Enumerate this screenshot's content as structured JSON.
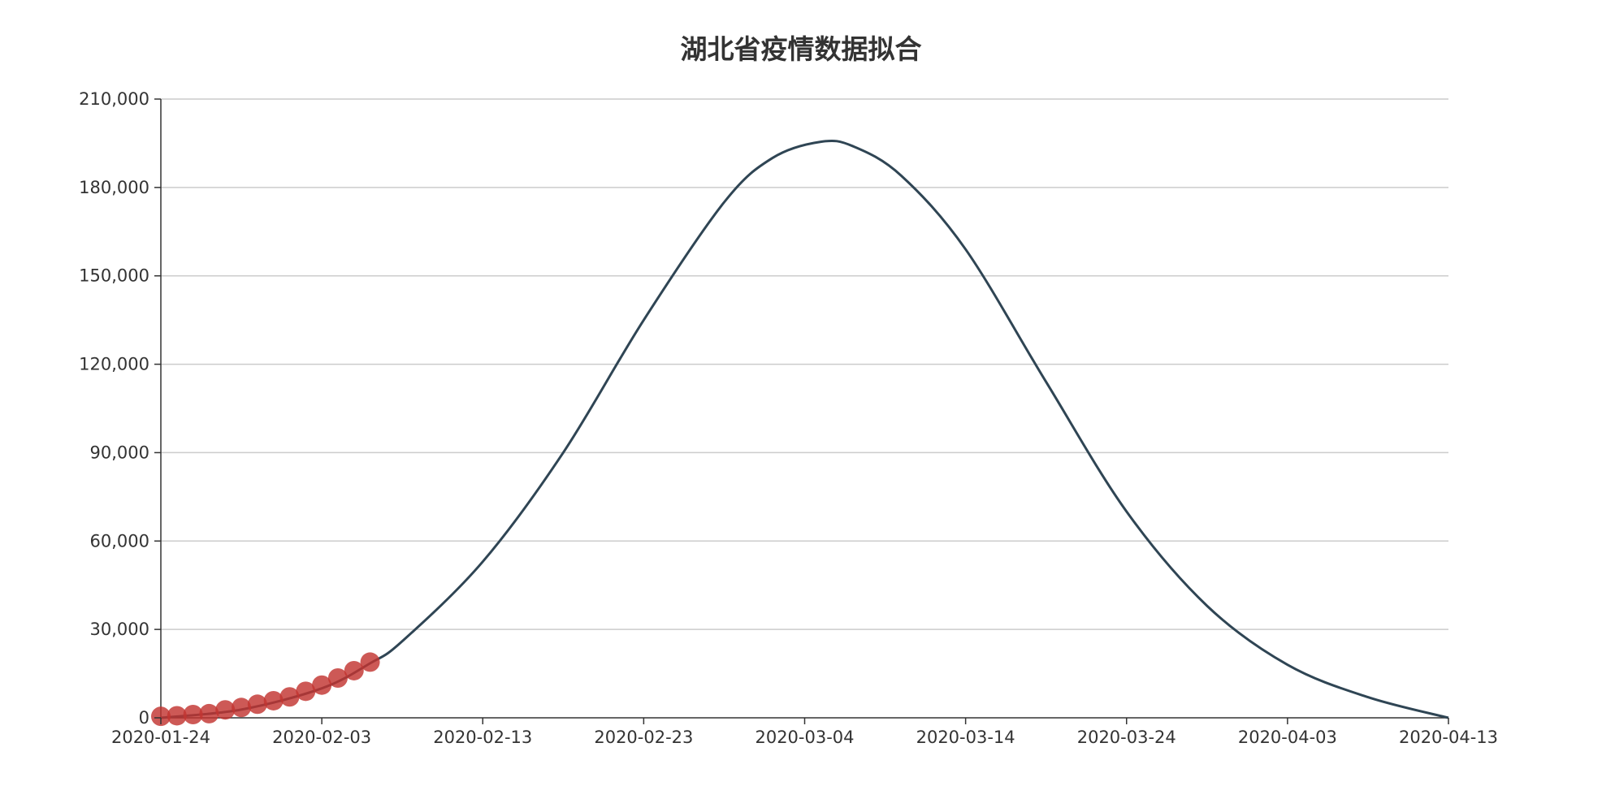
{
  "chart_data": {
    "type": "line",
    "title": "湖北省疫情数据拟合",
    "xlabel": "",
    "ylabel": "",
    "x_axis_type": "date",
    "xlim": [
      "2020-01-24",
      "2020-04-13"
    ],
    "x_ticks": [
      "2020-01-24",
      "2020-02-03",
      "2020-02-13",
      "2020-02-23",
      "2020-03-04",
      "2020-03-14",
      "2020-03-24",
      "2020-04-03",
      "2020-04-13"
    ],
    "ylim": [
      0,
      210000
    ],
    "y_ticks": [
      0,
      30000,
      60000,
      90000,
      120000,
      150000,
      180000,
      210000
    ],
    "y_tick_labels": [
      "0",
      "30,000",
      "60,000",
      "90,000",
      "120,000",
      "150,000",
      "180,000",
      "210,000"
    ],
    "grid": "horizontal",
    "legend": "none",
    "series": [
      {
        "kind": "scatter",
        "color": "#c23531",
        "points": [
          {
            "x": "2020-01-24",
            "y": 500
          },
          {
            "x": "2020-01-25",
            "y": 700
          },
          {
            "x": "2020-01-26",
            "y": 1100
          },
          {
            "x": "2020-01-27",
            "y": 1400
          },
          {
            "x": "2020-01-28",
            "y": 2700
          },
          {
            "x": "2020-01-29",
            "y": 3500
          },
          {
            "x": "2020-01-30",
            "y": 4600
          },
          {
            "x": "2020-01-31",
            "y": 5800
          },
          {
            "x": "2020-02-01",
            "y": 7100
          },
          {
            "x": "2020-02-02",
            "y": 9000
          },
          {
            "x": "2020-02-03",
            "y": 11100
          },
          {
            "x": "2020-02-04",
            "y": 13500
          },
          {
            "x": "2020-02-05",
            "y": 16000
          },
          {
            "x": "2020-02-06",
            "y": 18900
          }
        ]
      },
      {
        "kind": "line",
        "color": "#2f4554",
        "points": [
          {
            "x": "2020-01-24",
            "y": 0
          },
          {
            "x": "2020-01-29",
            "y": 2800
          },
          {
            "x": "2020-02-03",
            "y": 10000
          },
          {
            "x": "2020-02-06",
            "y": 18500
          },
          {
            "x": "2020-02-08",
            "y": 26000
          },
          {
            "x": "2020-02-13",
            "y": 53000
          },
          {
            "x": "2020-02-18",
            "y": 90000
          },
          {
            "x": "2020-02-23",
            "y": 135000
          },
          {
            "x": "2020-02-28",
            "y": 175000
          },
          {
            "x": "2020-03-02",
            "y": 190000
          },
          {
            "x": "2020-03-05",
            "y": 195500
          },
          {
            "x": "2020-03-07",
            "y": 194000
          },
          {
            "x": "2020-03-10",
            "y": 184000
          },
          {
            "x": "2020-03-14",
            "y": 159000
          },
          {
            "x": "2020-03-19",
            "y": 114000
          },
          {
            "x": "2020-03-24",
            "y": 70000
          },
          {
            "x": "2020-03-29",
            "y": 38000
          },
          {
            "x": "2020-04-03",
            "y": 18000
          },
          {
            "x": "2020-04-08",
            "y": 7000
          },
          {
            "x": "2020-04-13",
            "y": 0
          }
        ]
      }
    ]
  }
}
